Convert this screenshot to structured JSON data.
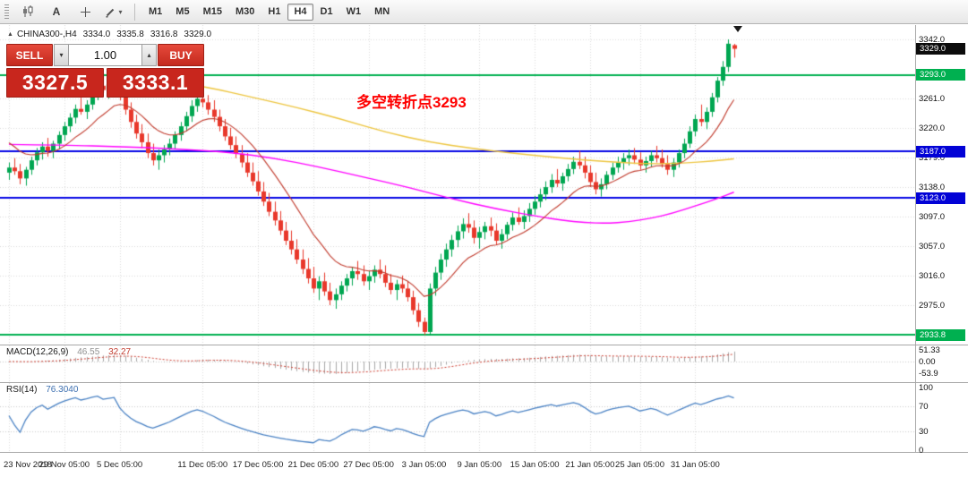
{
  "toolbar": {
    "text_tool_label": "A",
    "crosshair_tool_label": "T",
    "chevron": "▾",
    "timeframes": [
      "M1",
      "M5",
      "M15",
      "M30",
      "H1",
      "H4",
      "D1",
      "W1",
      "MN"
    ],
    "active_timeframe": "H4"
  },
  "chart_header": {
    "toggle_glyph": "▲",
    "symbol_period": "CHINA300-,H4",
    "open": "3334.0",
    "high": "3335.8",
    "low": "3316.8",
    "close": "3329.0"
  },
  "trade_panel": {
    "sell_label": "SELL",
    "buy_label": "BUY",
    "volume": "1.00",
    "step_down": "▾",
    "step_up": "▴",
    "bid": "3327.5",
    "ask": "3333.1"
  },
  "annotation": {
    "text": "多空转折点3293",
    "color": "#ff0000"
  },
  "price_axis": {
    "labels": [
      {
        "text": "3342.0",
        "price": 3342.0
      },
      {
        "text": "3261.0",
        "price": 3261.0
      },
      {
        "text": "3220.0",
        "price": 3220.0
      },
      {
        "text": "3179.0",
        "price": 3179.0
      },
      {
        "text": "3138.0",
        "price": 3138.0
      },
      {
        "text": "3097.0",
        "price": 3097.0
      },
      {
        "text": "3057.0",
        "price": 3057.0
      },
      {
        "text": "3016.0",
        "price": 3016.0
      },
      {
        "text": "2975.0",
        "price": 2975.0
      }
    ],
    "tags": [
      {
        "text": "3329.0",
        "price": 3329.0,
        "bg": "#0c0c0c"
      },
      {
        "text": "3293.0",
        "price": 3293.0,
        "bg": "#00b050"
      },
      {
        "text": "3187.0",
        "price": 3187.0,
        "bg": "#0202d6"
      },
      {
        "text": "3123.0",
        "price": 3123.0,
        "bg": "#0202d6"
      },
      {
        "text": "2933.8",
        "price": 2933.8,
        "bg": "#00b050"
      }
    ]
  },
  "hlines": [
    {
      "price": 3293.0,
      "color": "#00b050",
      "width": 2
    },
    {
      "price": 3187.0,
      "color": "#0404e4",
      "width": 2
    },
    {
      "price": 3123.0,
      "color": "#0404e4",
      "width": 2
    },
    {
      "price": 2933.8,
      "color": "#00b050",
      "width": 2
    }
  ],
  "macd_panel": {
    "title": "MACD(12,26,9)",
    "main_value": "46.55",
    "signal_value": "32.27",
    "axis_labels": [
      {
        "text": "51.33",
        "value": 51.33
      },
      {
        "text": "0.00",
        "value": 0
      },
      {
        "text": "-53.9",
        "value": -53.9
      }
    ]
  },
  "rsi_panel": {
    "title": "RSI(14)",
    "value": "76.3040",
    "axis_labels": [
      {
        "text": "100",
        "value": 100
      },
      {
        "text": "70",
        "value": 70
      },
      {
        "text": "30",
        "value": 30
      },
      {
        "text": "0",
        "value": 0
      }
    ],
    "levels": [
      70,
      30
    ]
  },
  "time_axis": {
    "ticks": [
      {
        "label": "23 Nov 2018",
        "index": 0
      },
      {
        "label": "29 Nov 05:00",
        "index": 10
      },
      {
        "label": "5 Dec 05:00",
        "index": 20
      },
      {
        "label": "11 Dec 05:00",
        "index": 35
      },
      {
        "label": "17 Dec 05:00",
        "index": 45
      },
      {
        "label": "21 Dec 05:00",
        "index": 55
      },
      {
        "label": "27 Dec 05:00",
        "index": 65
      },
      {
        "label": "3 Jan 05:00",
        "index": 75
      },
      {
        "label": "9 Jan 05:00",
        "index": 85
      },
      {
        "label": "15 Jan 05:00",
        "index": 95
      },
      {
        "label": "21 Jan 05:00",
        "index": 105
      },
      {
        "label": "25 Jan 05:00",
        "index": 114
      },
      {
        "label": "31 Jan 05:00",
        "index": 124
      }
    ]
  },
  "chart_data": {
    "type": "candlestick",
    "symbol": "CHINA300-",
    "timeframe": "H4",
    "current_bar": {
      "open": 3334.0,
      "high": 3335.8,
      "low": 3316.8,
      "close": 3329.0,
      "bid": 3327.5,
      "ask": 3333.1
    },
    "y_axis_visible_range": [
      2920,
      3362
    ],
    "key_levels": [
      3293.0,
      3187.0,
      3123.0,
      2933.8
    ],
    "ohlc_legend": [
      "open",
      "high",
      "low",
      "close"
    ],
    "candles": [
      [
        3158,
        3172,
        3148,
        3165
      ],
      [
        3165,
        3178,
        3155,
        3160
      ],
      [
        3160,
        3170,
        3142,
        3150
      ],
      [
        3150,
        3166,
        3140,
        3162
      ],
      [
        3162,
        3180,
        3155,
        3175
      ],
      [
        3175,
        3192,
        3168,
        3186
      ],
      [
        3186,
        3200,
        3176,
        3194
      ],
      [
        3194,
        3206,
        3180,
        3188
      ],
      [
        3188,
        3202,
        3178,
        3198
      ],
      [
        3198,
        3215,
        3190,
        3210
      ],
      [
        3210,
        3228,
        3202,
        3222
      ],
      [
        3222,
        3240,
        3214,
        3234
      ],
      [
        3234,
        3252,
        3226,
        3246
      ],
      [
        3246,
        3262,
        3238,
        3242
      ],
      [
        3242,
        3258,
        3232,
        3252
      ],
      [
        3252,
        3272,
        3245,
        3266
      ],
      [
        3266,
        3284,
        3258,
        3278
      ],
      [
        3278,
        3295,
        3268,
        3272
      ],
      [
        3272,
        3288,
        3260,
        3280
      ],
      [
        3280,
        3298,
        3270,
        3288
      ],
      [
        3288,
        3292,
        3258,
        3264
      ],
      [
        3264,
        3272,
        3238,
        3245
      ],
      [
        3245,
        3255,
        3220,
        3228
      ],
      [
        3228,
        3238,
        3205,
        3212
      ],
      [
        3212,
        3225,
        3192,
        3200
      ],
      [
        3200,
        3212,
        3178,
        3185
      ],
      [
        3185,
        3198,
        3168,
        3175
      ],
      [
        3175,
        3190,
        3162,
        3182
      ],
      [
        3182,
        3196,
        3172,
        3190
      ],
      [
        3190,
        3205,
        3182,
        3198
      ],
      [
        3198,
        3215,
        3190,
        3210
      ],
      [
        3210,
        3228,
        3202,
        3222
      ],
      [
        3222,
        3242,
        3215,
        3236
      ],
      [
        3236,
        3258,
        3228,
        3250
      ],
      [
        3250,
        3268,
        3242,
        3260
      ],
      [
        3260,
        3272,
        3248,
        3255
      ],
      [
        3255,
        3265,
        3238,
        3245
      ],
      [
        3245,
        3258,
        3228,
        3235
      ],
      [
        3235,
        3245,
        3215,
        3222
      ],
      [
        3222,
        3232,
        3202,
        3208
      ],
      [
        3208,
        3220,
        3190,
        3196
      ],
      [
        3196,
        3208,
        3178,
        3184
      ],
      [
        3184,
        3196,
        3165,
        3172
      ],
      [
        3172,
        3185,
        3152,
        3158
      ],
      [
        3158,
        3172,
        3140,
        3146
      ],
      [
        3146,
        3160,
        3126,
        3132
      ],
      [
        3132,
        3145,
        3112,
        3118
      ],
      [
        3118,
        3130,
        3098,
        3104
      ],
      [
        3104,
        3118,
        3085,
        3092
      ],
      [
        3092,
        3105,
        3072,
        3078
      ],
      [
        3078,
        3090,
        3058,
        3064
      ],
      [
        3064,
        3078,
        3045,
        3052
      ],
      [
        3052,
        3066,
        3032,
        3038
      ],
      [
        3038,
        3052,
        3018,
        3025
      ],
      [
        3025,
        3040,
        3005,
        3012
      ],
      [
        3012,
        3028,
        2992,
        2998
      ],
      [
        2998,
        3015,
        2982,
        3008
      ],
      [
        3008,
        3020,
        2988,
        2994
      ],
      [
        2994,
        3006,
        2975,
        2982
      ],
      [
        2982,
        2998,
        2970,
        2990
      ],
      [
        2990,
        3008,
        2982,
        3002
      ],
      [
        3002,
        3018,
        2994,
        3012
      ],
      [
        3012,
        3028,
        3002,
        3022
      ],
      [
        3022,
        3036,
        3010,
        3018
      ],
      [
        3018,
        3030,
        3002,
        3008
      ],
      [
        3008,
        3022,
        2996,
        3015
      ],
      [
        3015,
        3030,
        3006,
        3024
      ],
      [
        3024,
        3038,
        3012,
        3018
      ],
      [
        3018,
        3030,
        3000,
        3006
      ],
      [
        3006,
        3018,
        2990,
        2996
      ],
      [
        2996,
        3010,
        2982,
        3004
      ],
      [
        3004,
        3016,
        2992,
        2998
      ],
      [
        2998,
        3008,
        2980,
        2986
      ],
      [
        2986,
        2995,
        2962,
        2968
      ],
      [
        2968,
        2978,
        2945,
        2952
      ],
      [
        2952,
        2958,
        2934,
        2938
      ],
      [
        2938,
        3005,
        2933,
        2998
      ],
      [
        2998,
        3028,
        2988,
        3020
      ],
      [
        3020,
        3046,
        3010,
        3038
      ],
      [
        3038,
        3060,
        3028,
        3052
      ],
      [
        3052,
        3072,
        3042,
        3065
      ],
      [
        3065,
        3085,
        3055,
        3077
      ],
      [
        3077,
        3095,
        3067,
        3087
      ],
      [
        3087,
        3102,
        3075,
        3082
      ],
      [
        3082,
        3092,
        3060,
        3068
      ],
      [
        3068,
        3083,
        3053,
        3076
      ],
      [
        3076,
        3090,
        3066,
        3084
      ],
      [
        3084,
        3096,
        3070,
        3078
      ],
      [
        3078,
        3088,
        3058,
        3064
      ],
      [
        3064,
        3080,
        3053,
        3073
      ],
      [
        3073,
        3090,
        3066,
        3086
      ],
      [
        3086,
        3103,
        3078,
        3096
      ],
      [
        3096,
        3110,
        3086,
        3090
      ],
      [
        3090,
        3106,
        3080,
        3098
      ],
      [
        3098,
        3116,
        3090,
        3108
      ],
      [
        3108,
        3126,
        3100,
        3118
      ],
      [
        3118,
        3136,
        3110,
        3128
      ],
      [
        3128,
        3146,
        3120,
        3138
      ],
      [
        3138,
        3156,
        3130,
        3148
      ],
      [
        3148,
        3163,
        3138,
        3143
      ],
      [
        3143,
        3158,
        3133,
        3153
      ],
      [
        3153,
        3170,
        3146,
        3163
      ],
      [
        3163,
        3180,
        3156,
        3173
      ],
      [
        3173,
        3188,
        3163,
        3168
      ],
      [
        3168,
        3180,
        3150,
        3158
      ],
      [
        3158,
        3168,
        3138,
        3145
      ],
      [
        3145,
        3158,
        3128,
        3135
      ],
      [
        3135,
        3150,
        3125,
        3142
      ],
      [
        3142,
        3160,
        3135,
        3155
      ],
      [
        3155,
        3172,
        3148,
        3165
      ],
      [
        3165,
        3180,
        3158,
        3172
      ],
      [
        3172,
        3185,
        3162,
        3178
      ],
      [
        3178,
        3190,
        3168,
        3182
      ],
      [
        3182,
        3192,
        3170,
        3176
      ],
      [
        3176,
        3186,
        3162,
        3168
      ],
      [
        3168,
        3180,
        3158,
        3174
      ],
      [
        3174,
        3188,
        3166,
        3182
      ],
      [
        3182,
        3195,
        3172,
        3178
      ],
      [
        3178,
        3190,
        3165,
        3170
      ],
      [
        3170,
        3182,
        3155,
        3162
      ],
      [
        3162,
        3178,
        3152,
        3172
      ],
      [
        3172,
        3190,
        3165,
        3185
      ],
      [
        3185,
        3205,
        3178,
        3198
      ],
      [
        3198,
        3222,
        3192,
        3215
      ],
      [
        3215,
        3238,
        3208,
        3232
      ],
      [
        3232,
        3252,
        3222,
        3228
      ],
      [
        3228,
        3248,
        3218,
        3242
      ],
      [
        3242,
        3268,
        3235,
        3262
      ],
      [
        3262,
        3290,
        3255,
        3285
      ],
      [
        3285,
        3312,
        3278,
        3304
      ],
      [
        3304,
        3342,
        3297,
        3336
      ],
      [
        3334,
        3335.8,
        3316.8,
        3329
      ]
    ],
    "colors": {
      "up": "#00a651",
      "down": "#e8382b",
      "ma_fast_red": "#c0392b",
      "ma_slow_yellow": "#edc53f",
      "ma_long_magenta": "#ff00ff",
      "macd_hist": "#a6a6a6",
      "macd_signal": "#cc3b2e",
      "rsi_line": "#4a82c4"
    },
    "ma_fast_period": 13,
    "ma_points_yellow": [
      [
        30,
        3283
      ],
      [
        36,
        3276
      ],
      [
        44,
        3262
      ],
      [
        52,
        3248
      ],
      [
        60,
        3232
      ],
      [
        68,
        3214
      ],
      [
        76,
        3200
      ],
      [
        84,
        3191
      ],
      [
        92,
        3184
      ],
      [
        100,
        3178
      ],
      [
        108,
        3173
      ],
      [
        116,
        3170
      ],
      [
        122,
        3171
      ],
      [
        127,
        3174
      ],
      [
        131,
        3177
      ]
    ],
    "ma_points_magenta": [
      [
        0,
        3197
      ],
      [
        10,
        3196
      ],
      [
        20,
        3194
      ],
      [
        30,
        3191
      ],
      [
        40,
        3186
      ],
      [
        48,
        3178
      ],
      [
        56,
        3166
      ],
      [
        64,
        3152
      ],
      [
        72,
        3138
      ],
      [
        80,
        3122
      ],
      [
        88,
        3108
      ],
      [
        96,
        3097
      ],
      [
        100,
        3092
      ],
      [
        104,
        3089
      ],
      [
        108,
        3088
      ],
      [
        112,
        3090
      ],
      [
        116,
        3095
      ],
      [
        120,
        3102
      ],
      [
        124,
        3112
      ],
      [
        128,
        3122
      ],
      [
        131,
        3131
      ]
    ]
  }
}
